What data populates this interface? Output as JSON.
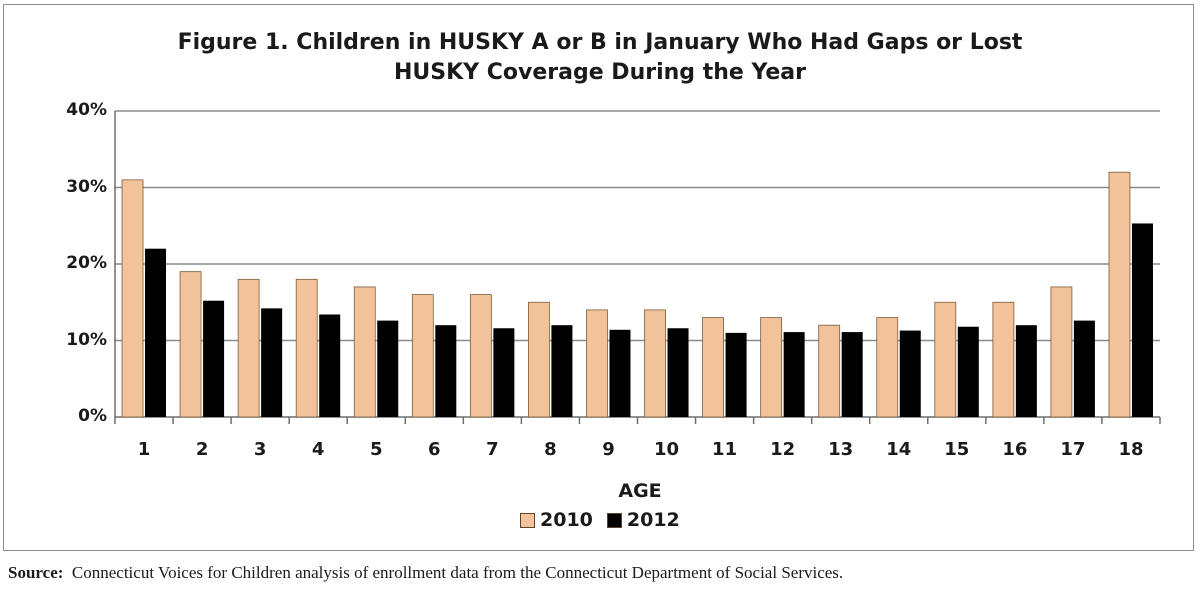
{
  "chart_data": {
    "type": "bar",
    "title_lines": [
      "Figure 1.  Children in HUSKY A or B in January Who Had Gaps or Lost",
      "HUSKY Coverage During the Year"
    ],
    "xlabel": "AGE",
    "ylabel": "",
    "ylim": [
      0,
      40
    ],
    "yticks": [
      "0%",
      "10%",
      "20%",
      "30%",
      "40%"
    ],
    "grid": true,
    "legend_position": "bottom",
    "categories": [
      "1",
      "2",
      "3",
      "4",
      "5",
      "6",
      "7",
      "8",
      "9",
      "10",
      "11",
      "12",
      "13",
      "14",
      "15",
      "16",
      "17",
      "18"
    ],
    "series": [
      {
        "name": "2010",
        "color": "#f2c39a",
        "values": [
          31,
          19,
          18,
          18,
          17,
          16,
          16,
          15,
          14,
          14,
          13,
          13,
          12,
          13,
          15,
          15,
          17,
          32
        ]
      },
      {
        "name": "2012",
        "color": "#000000",
        "values": [
          22,
          15.2,
          14.2,
          13.4,
          12.6,
          12,
          11.6,
          12,
          11.4,
          11.6,
          11,
          11.1,
          11.1,
          11.3,
          11.8,
          12,
          12.6,
          25.3
        ]
      }
    ]
  },
  "source": {
    "label": "Source:",
    "text": "Connecticut Voices for Children analysis of enrollment data from the Connecticut Department of Social Services."
  }
}
